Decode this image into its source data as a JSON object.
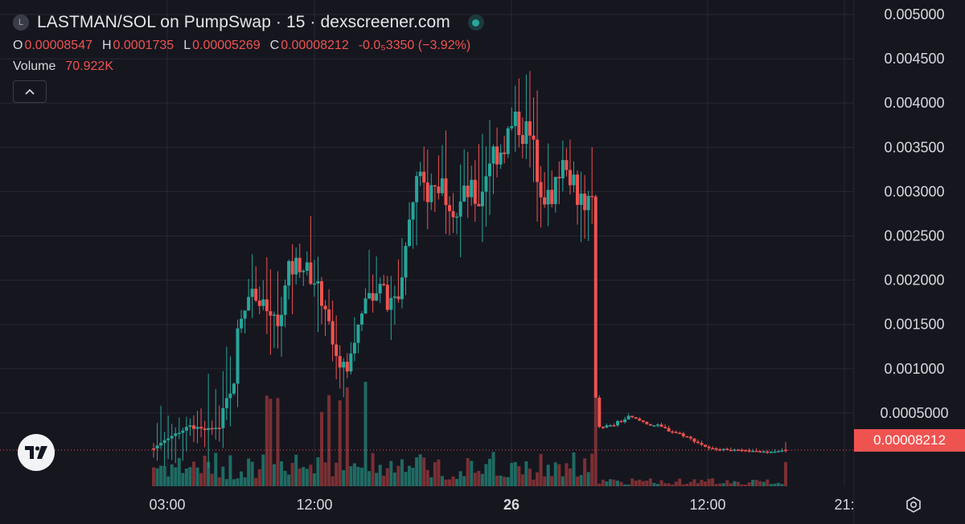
{
  "header": {
    "logo_letter": "L",
    "title": "LASTMAN/SOL on PumpSwap · 15 · dexscreener.com",
    "ohlc": [
      {
        "key": "O",
        "value": "0.00008547"
      },
      {
        "key": "H",
        "value": "0.0001735"
      },
      {
        "key": "L",
        "value": "0.00005269"
      },
      {
        "key": "C",
        "value": "0.00008212"
      },
      {
        "key": "",
        "value": "-0.0₅3350 (−3.92%)"
      }
    ],
    "volume_label": "Volume",
    "volume_value": "70.922K",
    "collapse_icon": "chevron-up-icon"
  },
  "colors": {
    "background": "#16161f",
    "grid": "#262833",
    "up": "#26a69a",
    "down": "#ef5350",
    "up_volume": "#1f6b63",
    "down_volume": "#7a3034",
    "axis_text": "#d6d8de"
  },
  "last_price_label": "0.00008212",
  "chart_data": {
    "type": "candlestick",
    "interval": "15",
    "y_axis": {
      "ticks": [
        "0.0005000",
        "0.001000",
        "0.001500",
        "0.002000",
        "0.002500",
        "0.003000",
        "0.003500",
        "0.004000",
        "0.004500",
        "0.005000"
      ],
      "tick_values": [
        0.0005,
        0.001,
        0.0015,
        0.002,
        0.0025,
        0.003,
        0.0035,
        0.004,
        0.0045,
        0.005
      ],
      "range": [
        0.0,
        0.005
      ],
      "position": "right"
    },
    "x_axis": {
      "ticks": [
        "03:00",
        "12:00",
        "26",
        "12:00",
        "21:"
      ],
      "bold_tick": "26"
    },
    "last_price": 8.212e-05,
    "last_candle": {
      "open": 8.547e-05,
      "high": 0.0001735,
      "low": 5.269e-05,
      "close": 8.212e-05
    },
    "last_volume": "70.922K",
    "price_keyframes": [
      [
        0,
        0.0001
      ],
      [
        3,
        0.0002
      ],
      [
        10,
        0.00035
      ],
      [
        14,
        0.0003
      ],
      [
        18,
        0.00035
      ],
      [
        20,
        0.0007
      ],
      [
        22,
        0.0008
      ],
      [
        23,
        0.0014
      ],
      [
        26,
        0.0019
      ],
      [
        30,
        0.0017
      ],
      [
        34,
        0.0015
      ],
      [
        37,
        0.0021
      ],
      [
        40,
        0.0022
      ],
      [
        44,
        0.002
      ],
      [
        47,
        0.0017
      ],
      [
        50,
        0.0011
      ],
      [
        53,
        0.001
      ],
      [
        56,
        0.0015
      ],
      [
        59,
        0.0018
      ],
      [
        62,
        0.002
      ],
      [
        64,
        0.0017
      ],
      [
        67,
        0.0018
      ],
      [
        70,
        0.0027
      ],
      [
        72,
        0.0031
      ],
      [
        75,
        0.003
      ],
      [
        79,
        0.0031
      ],
      [
        83,
        0.0028
      ],
      [
        86,
        0.003
      ],
      [
        89,
        0.0029
      ],
      [
        92,
        0.0034
      ],
      [
        95,
        0.0035
      ],
      [
        98,
        0.0037
      ],
      [
        100,
        0.0038
      ],
      [
        103,
        0.0036
      ],
      [
        106,
        0.0031
      ],
      [
        109,
        0.0028
      ],
      [
        111,
        0.0033
      ],
      [
        113,
        0.0034
      ],
      [
        116,
        0.003
      ],
      [
        118,
        0.0029
      ],
      [
        120,
        0.0028
      ],
      [
        121,
        0.0007
      ],
      [
        122,
        0.00035
      ],
      [
        125,
        0.00035
      ],
      [
        130,
        0.00045
      ],
      [
        138,
        0.00035
      ],
      [
        145,
        0.00025
      ],
      [
        152,
        0.0001
      ],
      [
        160,
        8e-05
      ],
      [
        168,
        6e-05
      ],
      [
        173,
        8e-05
      ]
    ]
  }
}
